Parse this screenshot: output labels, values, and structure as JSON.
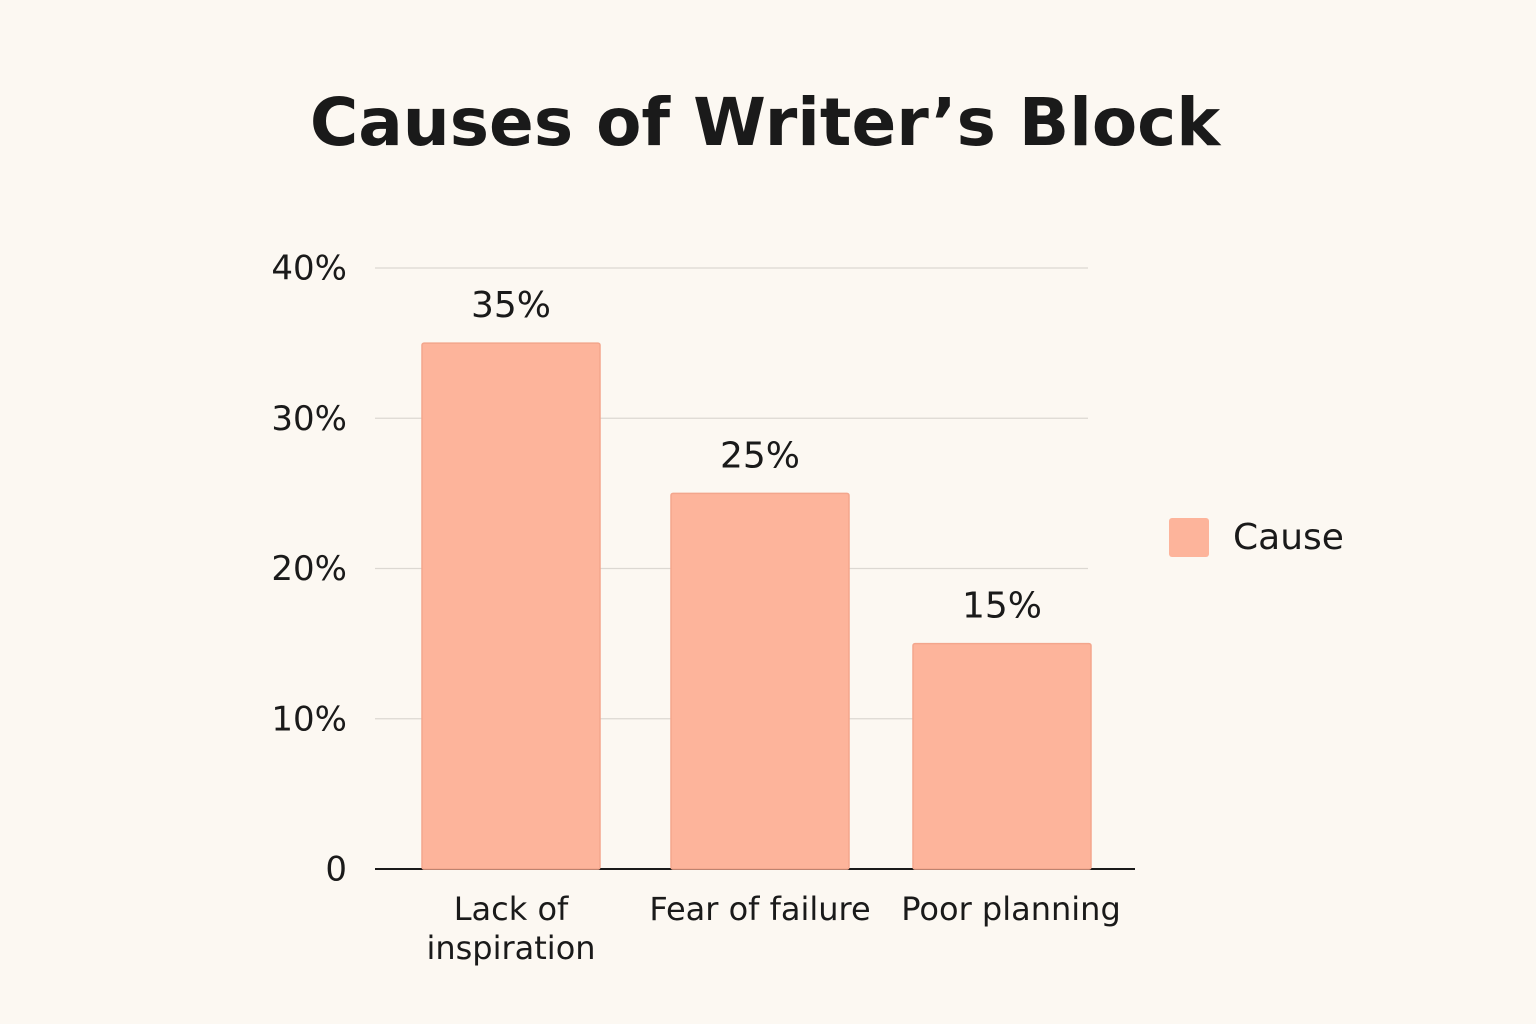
{
  "chart_data": {
    "type": "bar",
    "title": "Causes of Writer’s Block",
    "categories": [
      "Lack of inspiration",
      "Fear of failure",
      "Poor planning"
    ],
    "series": [
      {
        "name": "Cause",
        "color": "#fdb49b",
        "values": [
          35,
          25,
          15
        ],
        "value_labels": [
          "35%",
          "25%",
          "15%"
        ]
      }
    ],
    "ylim": [
      0,
      40
    ],
    "yticks": [
      0,
      {
        "value": 10,
        "label": "10%"
      },
      {
        "value": 20,
        "label": "20%"
      },
      {
        "value": 30,
        "label": "30%"
      },
      {
        "value": 40,
        "label": "40%"
      }
    ],
    "grid": true,
    "legend": "right"
  }
}
